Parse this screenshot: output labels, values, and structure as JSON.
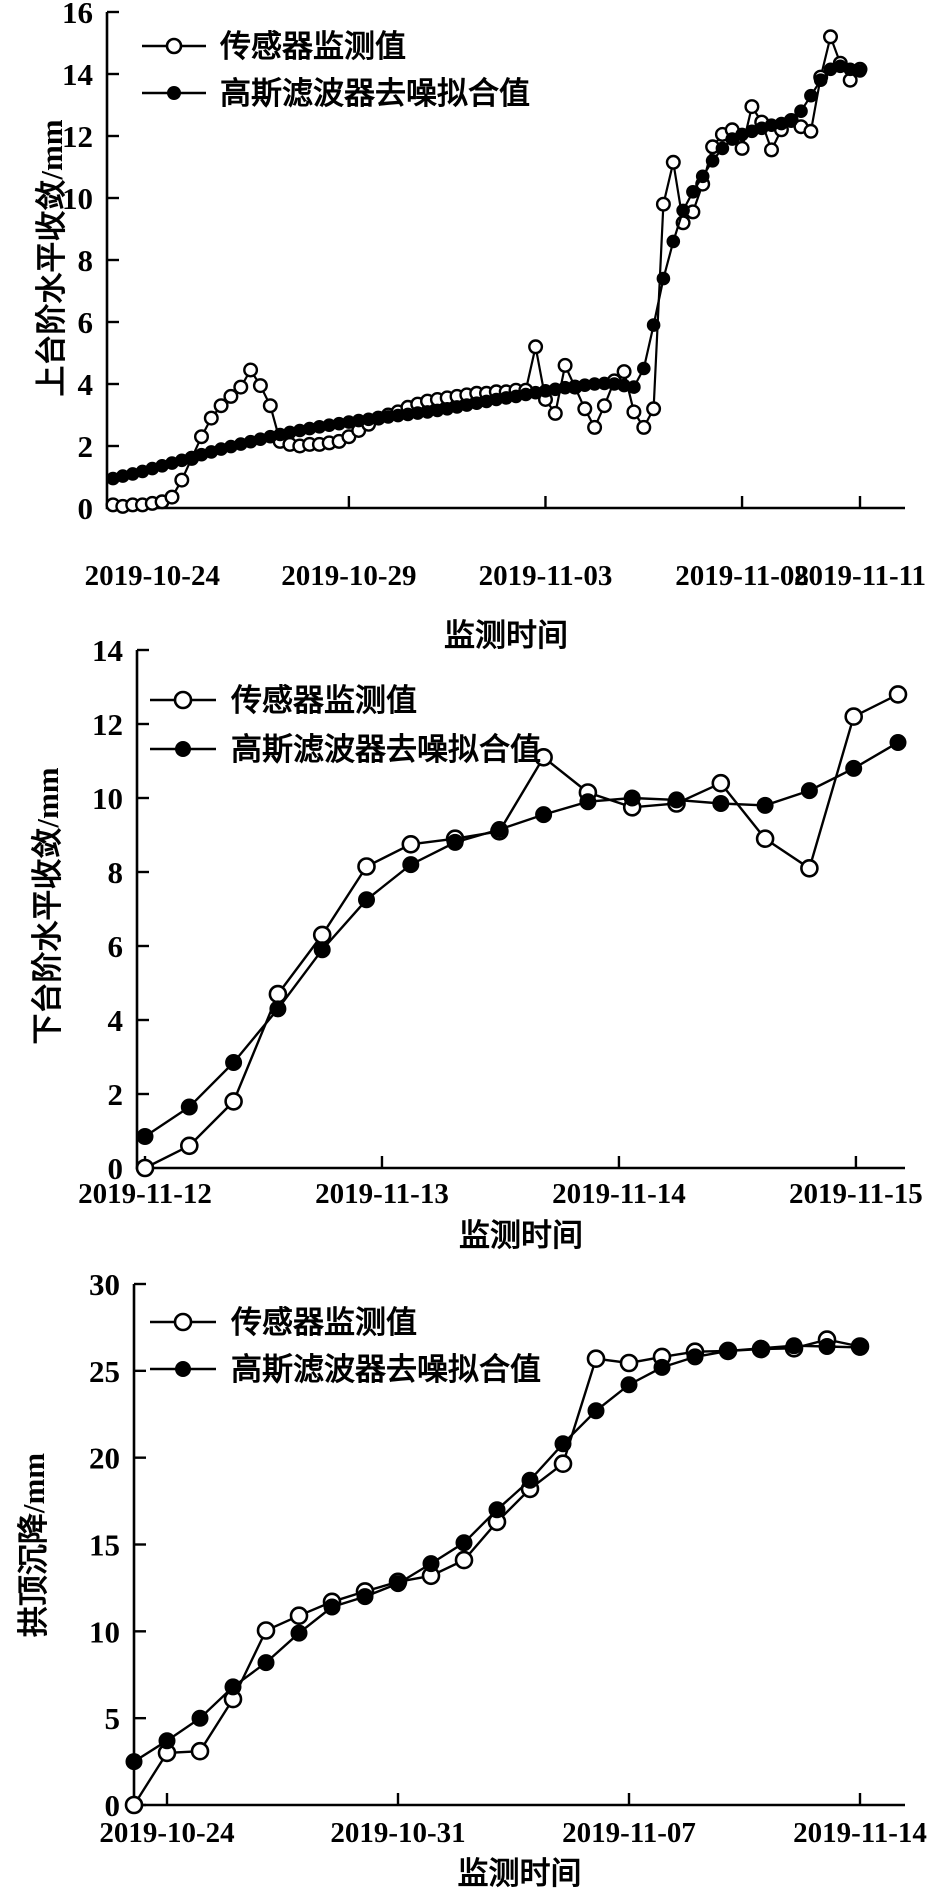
{
  "figure": {
    "background": "#ffffff",
    "foreground": "#000000",
    "legend": [
      "传感器监测值",
      "高斯滤波器去噪拟合值"
    ],
    "xlabel": "监测时间"
  },
  "chart_data": [
    {
      "type": "line",
      "title": "",
      "xlabel": "监测时间",
      "ylabel": "上台阶水平收敛/mm",
      "ylim": [
        0,
        16
      ],
      "yticks": [
        0,
        2,
        4,
        6,
        8,
        10,
        12,
        14,
        16
      ],
      "xlim": [
        0,
        19
      ],
      "x_start": 0,
      "x_step": 0.25,
      "xticks": [
        {
          "x": 1,
          "label": "2019-10-24"
        },
        {
          "x": 6,
          "label": "2019-10-29"
        },
        {
          "x": 11,
          "label": "2019-11-03"
        },
        {
          "x": 16,
          "label": "2019-11-08"
        },
        {
          "x": 19,
          "label": "2019-11-11"
        }
      ],
      "grid": false,
      "legend_position": "top-left",
      "series": [
        {
          "name": "传感器监测值",
          "marker": "open-circle",
          "values": [
            0.1,
            0.05,
            0.1,
            0.1,
            0.15,
            0.2,
            0.35,
            0.9,
            1.6,
            2.3,
            2.9,
            3.3,
            3.6,
            3.9,
            4.45,
            3.95,
            3.3,
            2.15,
            2.05,
            2.0,
            2.05,
            2.05,
            2.1,
            2.15,
            2.3,
            2.5,
            2.7,
            2.9,
            3.0,
            3.1,
            3.25,
            3.35,
            3.45,
            3.5,
            3.55,
            3.6,
            3.65,
            3.7,
            3.7,
            3.75,
            3.75,
            3.8,
            3.8,
            5.2,
            3.5,
            3.05,
            4.6,
            3.9,
            3.2,
            2.6,
            3.3,
            4.1,
            4.4,
            3.1,
            2.6,
            3.2,
            9.8,
            11.15,
            9.2,
            9.55,
            10.45,
            11.65,
            12.05,
            12.2,
            11.6,
            12.95,
            12.45,
            11.55,
            12.2,
            12.5,
            12.3,
            12.15,
            13.9,
            15.2,
            14.35,
            13.8,
            14.15
          ]
        },
        {
          "name": "高斯滤波器去噪拟合值",
          "marker": "filled-circle",
          "values": [
            0.95,
            1.03,
            1.1,
            1.18,
            1.27,
            1.36,
            1.45,
            1.54,
            1.63,
            1.72,
            1.81,
            1.9,
            1.98,
            2.06,
            2.14,
            2.22,
            2.3,
            2.37,
            2.44,
            2.5,
            2.56,
            2.62,
            2.67,
            2.72,
            2.77,
            2.82,
            2.86,
            2.9,
            2.94,
            2.98,
            3.02,
            3.06,
            3.1,
            3.15,
            3.2,
            3.26,
            3.32,
            3.38,
            3.44,
            3.5,
            3.55,
            3.6,
            3.66,
            3.72,
            3.78,
            3.83,
            3.88,
            3.92,
            3.96,
            4.0,
            4.02,
            4.0,
            3.95,
            3.9,
            4.5,
            5.9,
            7.4,
            8.6,
            9.6,
            10.2,
            10.7,
            11.2,
            11.6,
            11.9,
            12.05,
            12.15,
            12.25,
            12.35,
            12.4,
            12.5,
            12.8,
            13.3,
            13.8,
            14.15,
            14.25,
            14.15,
            14.1
          ]
        }
      ]
    },
    {
      "type": "line",
      "title": "",
      "xlabel": "监测时间",
      "ylabel": "下台阶水平收敛/mm",
      "ylim": [
        0,
        14
      ],
      "yticks": [
        0,
        2,
        4,
        6,
        8,
        10,
        12,
        14
      ],
      "xlim": [
        0,
        17
      ],
      "x_start": 0,
      "x_step": 1,
      "xticks": [
        {
          "x": 0,
          "label": "2019-11-12"
        },
        {
          "x": 5.35,
          "label": "2019-11-13"
        },
        {
          "x": 10.7,
          "label": "2019-11-14"
        },
        {
          "x": 16.05,
          "label": "2019-11-15"
        }
      ],
      "grid": false,
      "legend_position": "top-left",
      "series": [
        {
          "name": "传感器监测值",
          "marker": "open-circle",
          "values": [
            0.0,
            0.6,
            1.8,
            4.7,
            6.3,
            8.15,
            8.75,
            8.9,
            9.1,
            11.1,
            10.15,
            9.75,
            9.85,
            10.4,
            8.9,
            8.1,
            12.2,
            12.8
          ]
        },
        {
          "name": "高斯滤波器去噪拟合值",
          "marker": "filled-circle",
          "values": [
            0.85,
            1.65,
            2.85,
            4.3,
            5.9,
            7.25,
            8.2,
            8.8,
            9.15,
            9.55,
            9.9,
            10.0,
            9.95,
            9.85,
            9.8,
            10.2,
            10.8,
            11.5
          ]
        }
      ]
    },
    {
      "type": "line",
      "title": "",
      "xlabel": "监测时间",
      "ylabel": "拱顶沉降/mm",
      "ylim": [
        0,
        30
      ],
      "yticks": [
        0,
        5,
        10,
        15,
        20,
        25,
        30
      ],
      "xlim": [
        0,
        22
      ],
      "x_start": 0,
      "x_step": 1,
      "xticks": [
        {
          "x": 1,
          "label": "2019-10-24"
        },
        {
          "x": 8,
          "label": "2019-10-31"
        },
        {
          "x": 15,
          "label": "2019-11-07"
        },
        {
          "x": 22,
          "label": "2019-11-14"
        }
      ],
      "grid": false,
      "legend_position": "top-left",
      "series": [
        {
          "name": "传感器监测值",
          "marker": "open-circle",
          "values": [
            0.0,
            3.0,
            3.1,
            6.1,
            10.05,
            10.9,
            11.7,
            12.3,
            12.85,
            13.2,
            14.1,
            16.3,
            18.2,
            19.65,
            25.7,
            25.45,
            25.8,
            26.1,
            26.15,
            26.25,
            26.3,
            26.8,
            26.4
          ]
        },
        {
          "name": "高斯滤波器去噪拟合值",
          "marker": "filled-circle",
          "values": [
            2.5,
            3.7,
            5.0,
            6.8,
            8.2,
            9.9,
            11.4,
            12.0,
            12.75,
            13.9,
            15.1,
            17.0,
            18.7,
            20.8,
            22.7,
            24.2,
            25.2,
            25.8,
            26.15,
            26.3,
            26.45,
            26.4,
            26.35
          ]
        }
      ]
    }
  ]
}
